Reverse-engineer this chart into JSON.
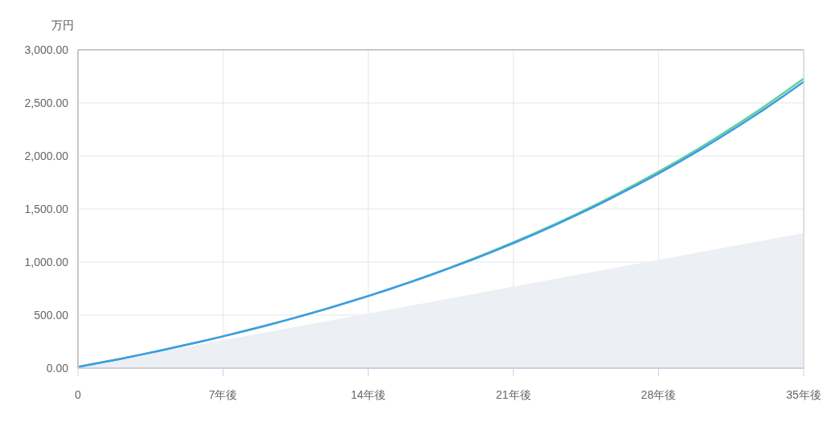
{
  "chart_data": {
    "type": "line",
    "ylabel": "万円",
    "x": [
      0,
      1,
      2,
      3,
      4,
      5,
      6,
      7,
      8,
      9,
      10,
      11,
      12,
      13,
      14,
      15,
      16,
      17,
      18,
      19,
      20,
      21,
      22,
      23,
      24,
      25,
      26,
      27,
      28,
      29,
      30,
      31,
      32,
      33,
      34,
      35
    ],
    "series": [
      {
        "type": "area",
        "color": "#eceff4",
        "values": [
          12,
          48,
          84,
          120,
          156,
          192,
          228,
          264,
          300,
          336,
          372,
          408,
          444,
          480,
          516,
          552,
          588,
          624,
          660,
          696,
          732,
          768,
          804,
          840,
          876,
          912,
          948,
          984,
          1020,
          1056,
          1092,
          1128,
          1164,
          1200,
          1236,
          1272
        ]
      },
      {
        "type": "line",
        "color": "#5fcf9e",
        "values": [
          12,
          49,
          86,
          126,
          167,
          210,
          254,
          300,
          348,
          398,
          450,
          505,
          561,
          620,
          681,
          745,
          811,
          880,
          952,
          1027,
          1105,
          1186,
          1270,
          1357,
          1448,
          1543,
          1642,
          1745,
          1851,
          1962,
          2078,
          2198,
          2323,
          2453,
          2589,
          2730
        ]
      },
      {
        "type": "line",
        "color": "#3e9be6",
        "values": [
          12,
          49,
          86,
          126,
          167,
          210,
          254,
          300,
          348,
          398,
          450,
          504,
          560,
          619,
          679,
          742,
          808,
          877,
          948,
          1021,
          1098,
          1178,
          1261,
          1348,
          1438,
          1531,
          1629,
          1730,
          1835,
          1944,
          2058,
          2176,
          2299,
          2427,
          2560,
          2699
        ]
      }
    ],
    "xlim": [
      0,
      35
    ],
    "xticks": [
      {
        "value": 0,
        "label": "0"
      },
      {
        "value": 7,
        "label": "7年後"
      },
      {
        "value": 14,
        "label": "14年後"
      },
      {
        "value": 21,
        "label": "21年後"
      },
      {
        "value": 28,
        "label": "28年後"
      },
      {
        "value": 35,
        "label": "35年後"
      }
    ],
    "ylim": [
      0,
      3000
    ],
    "yticks": [
      {
        "value": 0,
        "label": "0.00"
      },
      {
        "value": 500,
        "label": "500.00"
      },
      {
        "value": 1000,
        "label": "1,000.00"
      },
      {
        "value": 1500,
        "label": "1,500.00"
      },
      {
        "value": 2000,
        "label": "2,000.00"
      },
      {
        "value": 2500,
        "label": "2,500.00"
      },
      {
        "value": 3000,
        "label": "3,000.00"
      }
    ],
    "grid": true
  }
}
